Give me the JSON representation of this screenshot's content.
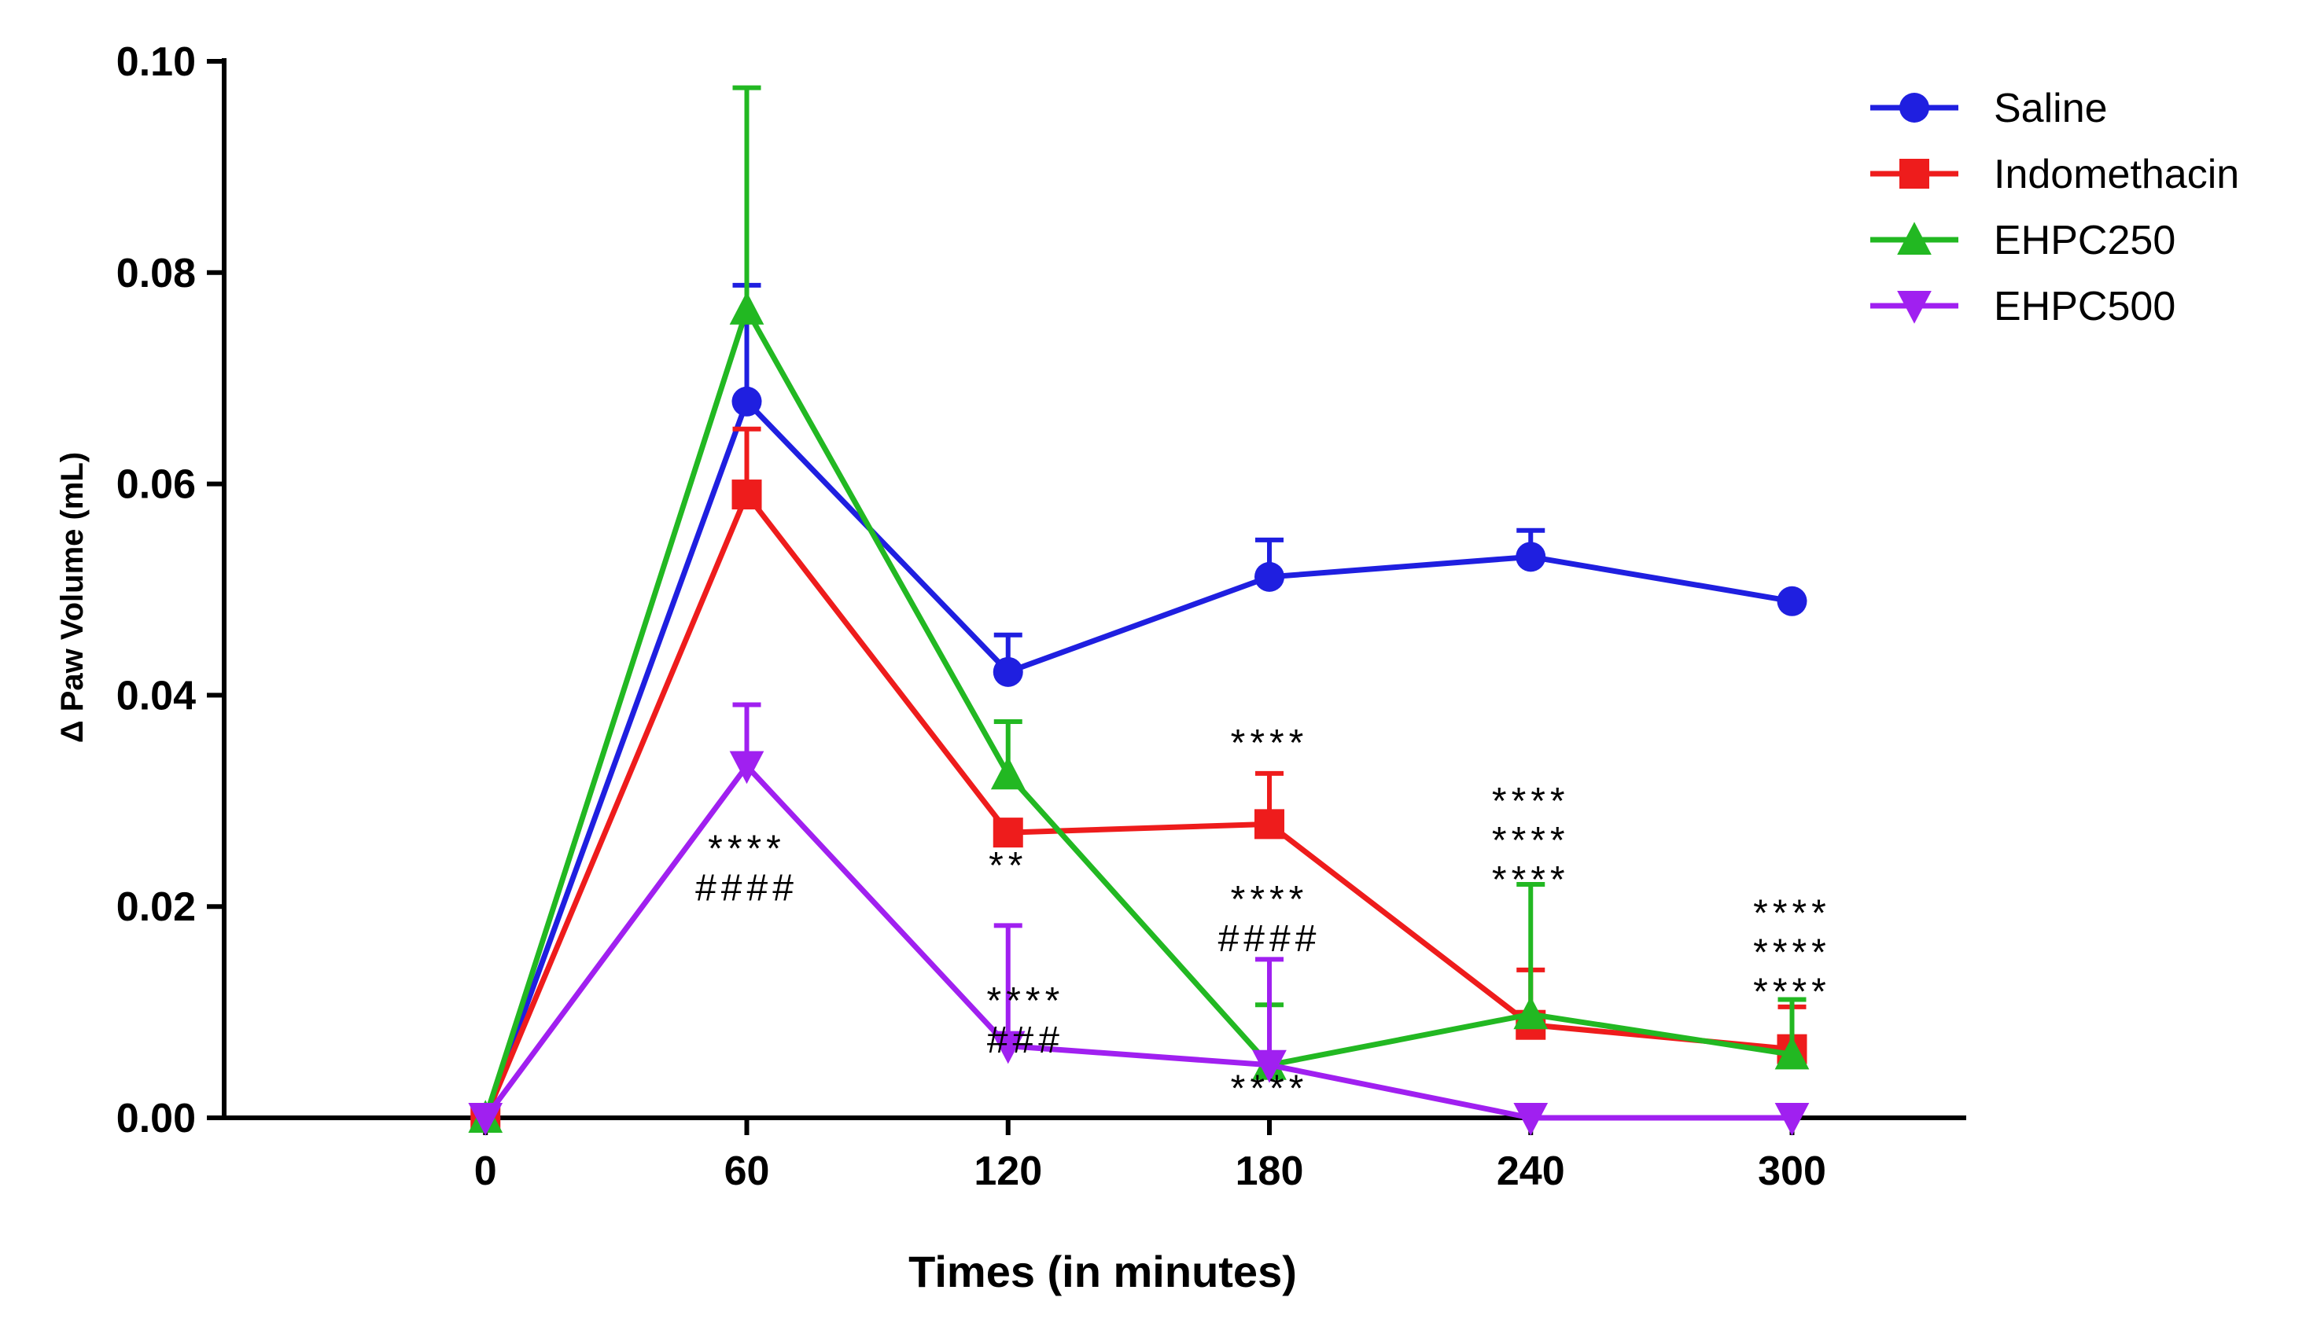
{
  "chart_data": {
    "type": "line",
    "title": "",
    "xlabel": "Times (in minutes)",
    "ylabel": "Δ Paw Volume  (mL)",
    "x": [
      0,
      60,
      120,
      180,
      240,
      300
    ],
    "xticks": [
      "0",
      "60",
      "120",
      "180",
      "240",
      "300"
    ],
    "yticks": [
      "0.00",
      "0.02",
      "0.04",
      "0.06",
      "0.08",
      "0.10"
    ],
    "xlim": [
      -60,
      340
    ],
    "ylim": [
      0,
      0.1
    ],
    "grid": false,
    "legend_position": "top-right",
    "series": [
      {
        "name": "Saline",
        "color": "#1f1fe0",
        "marker": "circle",
        "values": [
          0.0,
          0.0678,
          0.0422,
          0.0512,
          0.0531,
          0.0489
        ],
        "error": [
          0.0,
          0.011,
          0.0035,
          0.0035,
          0.0025,
          0.0
        ]
      },
      {
        "name": "Indomethacin",
        "color": "#ee1c1c",
        "marker": "square",
        "values": [
          0.0,
          0.059,
          0.027,
          0.0278,
          0.0088,
          0.0065
        ],
        "error": [
          0.0,
          0.0062,
          0.0,
          0.0048,
          0.0052,
          0.004
        ]
      },
      {
        "name": "EHPC250",
        "color": "#22b822",
        "marker": "triangle-up",
        "values": [
          0.0,
          0.0765,
          0.0325,
          0.005,
          0.0098,
          0.006
        ],
        "error": [
          0.0,
          0.021,
          0.005,
          0.0057,
          0.0123,
          0.0052
        ]
      },
      {
        "name": "EHPC500",
        "color": "#a020f0",
        "marker": "triangle-down",
        "values": [
          0.0,
          0.0333,
          0.0068,
          0.005,
          0.0,
          0.0
        ],
        "error": [
          0.0,
          0.0058,
          0.0114,
          0.01,
          0.0,
          0.0
        ]
      }
    ],
    "annotations": [
      {
        "lines": [
          "****",
          "####"
        ],
        "x": 60,
        "y": 0.0243
      },
      {
        "lines": [
          "**"
        ],
        "x": 120,
        "y": 0.0227
      },
      {
        "lines": [
          "****",
          "###"
        ],
        "x": 124,
        "y": 0.0099
      },
      {
        "lines": [
          "****"
        ],
        "x": 180,
        "y": 0.0343
      },
      {
        "lines": [
          "****",
          "####"
        ],
        "x": 180,
        "y": 0.0195
      },
      {
        "lines": [
          "****"
        ],
        "x": 180,
        "y": 0.0016
      },
      {
        "lines": [
          "****",
          "****",
          "****"
        ],
        "x": 240,
        "y": 0.0288
      },
      {
        "lines": [
          "****",
          "****",
          "****"
        ],
        "x": 300,
        "y": 0.0182
      }
    ]
  }
}
